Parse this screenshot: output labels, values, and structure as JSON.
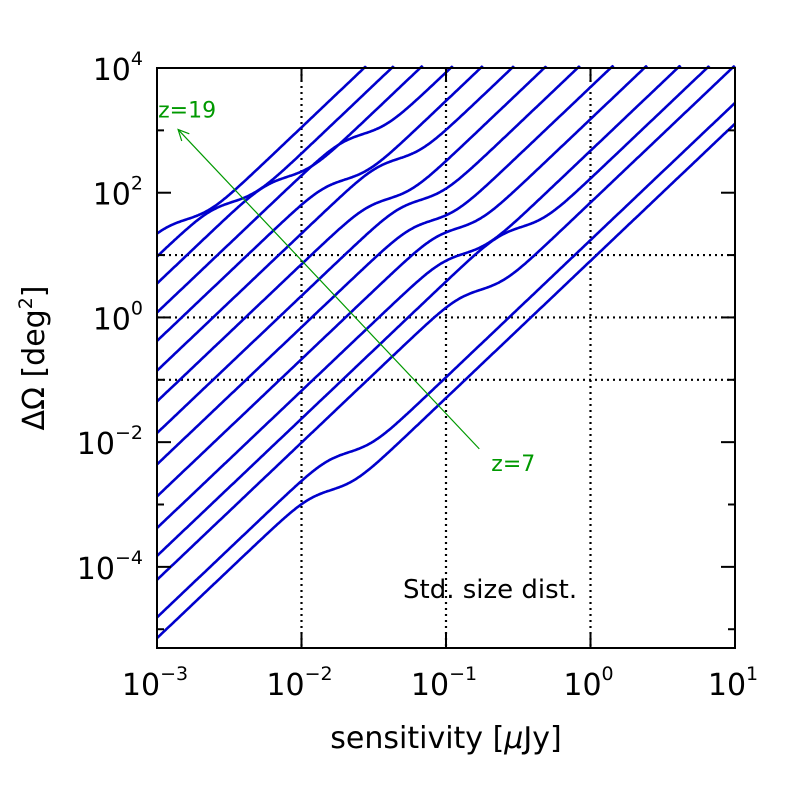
{
  "chart_data": {
    "type": "line",
    "title": "",
    "xlabel": "sensitivity [μJy]",
    "xlabel_parts": {
      "pre": "sensitivity [",
      "mu": "μ",
      "post": "Jy]"
    },
    "ylabel": "ΔΩ [deg²]",
    "ylabel_parts": {
      "pre": "ΔΩ [deg",
      "sup": "2",
      "post": "]"
    },
    "x_scale": "log",
    "y_scale": "log",
    "xlim": [
      0.001,
      10
    ],
    "ylim": [
      5e-06,
      10000
    ],
    "x_ticks": [
      {
        "value": 0.001,
        "base": "10",
        "exp": "−3"
      },
      {
        "value": 0.01,
        "base": "10",
        "exp": "−2"
      },
      {
        "value": 0.1,
        "base": "10",
        "exp": "−1"
      },
      {
        "value": 1,
        "base": "10",
        "exp": "0"
      },
      {
        "value": 10,
        "base": "10",
        "exp": "1"
      }
    ],
    "y_ticks": [
      {
        "value": 0.0001,
        "base": "10",
        "exp": "−4"
      },
      {
        "value": 0.01,
        "base": "10",
        "exp": "−2"
      },
      {
        "value": 1,
        "base": "10",
        "exp": "0"
      },
      {
        "value": 100,
        "base": "10",
        "exp": "2"
      },
      {
        "value": 10000,
        "base": "10",
        "exp": "4"
      }
    ],
    "gridlines": {
      "x": [
        0.01,
        0.1,
        1
      ],
      "y": [
        0.1,
        1,
        10
      ],
      "style": "dotted"
    },
    "annotation_text": "Std. size dist.",
    "redshift_arrow": {
      "start_label": "z=7",
      "end_label": "z=19",
      "start_point": [
        0.17,
        0.0078
      ],
      "end_point": [
        0.0014,
        1030
      ]
    },
    "series_shape": {
      "slope_per_decade": 2.2,
      "knee_dx_decades": 0.25,
      "knee_dy_decades": 0.35,
      "knee_width_decades": 0.08
    },
    "series": [
      {
        "name": "curve-1",
        "color": "#0000cc",
        "y_at_0.001": 7.2e-06,
        "knee_at": 0.012
      },
      {
        "name": "curve-2",
        "color": "#0000cc",
        "y_at_0.001": 1.55e-05,
        "knee_at": 0.016
      },
      {
        "name": "curve-3",
        "color": "#0000cc",
        "y_at_0.001": 6.2e-05,
        "knee_at": 0.13
      },
      {
        "name": "curve-4",
        "color": "#0000cc",
        "y_at_0.001": 0.00015,
        "knee_at": 0.25
      },
      {
        "name": "curve-5",
        "color": "#0000cc",
        "y_at_0.001": 0.00042,
        "knee_at": 0.1
      },
      {
        "name": "curve-6",
        "color": "#0000cc",
        "y_at_0.001": 0.00135,
        "knee_at": 0.09
      },
      {
        "name": "curve-7",
        "color": "#0000cc",
        "y_at_0.001": 0.0044,
        "knee_at": 0.06
      },
      {
        "name": "curve-8",
        "color": "#0000cc",
        "y_at_0.001": 0.014,
        "knee_at": 0.05
      },
      {
        "name": "curve-9",
        "color": "#0000cc",
        "y_at_0.001": 0.045,
        "knee_at": 0.03
      },
      {
        "name": "curve-10",
        "color": "#0000cc",
        "y_at_0.001": 0.14,
        "knee_at": 0.035
      },
      {
        "name": "curve-11",
        "color": "#0000cc",
        "y_at_0.001": 0.42,
        "knee_at": 0.015
      },
      {
        "name": "curve-12",
        "color": "#0000cc",
        "y_at_0.001": 1.2,
        "knee_at": 0.02
      },
      {
        "name": "curve-13",
        "color": "#0000cc",
        "y_at_0.001": 3.5,
        "knee_at": 0.006
      },
      {
        "name": "curve-14",
        "color": "#0000cc",
        "y_at_0.001": 9.5,
        "knee_at": 0.0025
      },
      {
        "name": "curve-15",
        "color": "#0000cc",
        "y_at_0.001": 25,
        "knee_at": 0.0012
      }
    ],
    "colors": {
      "curves": "#0000cc",
      "arrow": "#009900",
      "axes": "#000000"
    }
  }
}
